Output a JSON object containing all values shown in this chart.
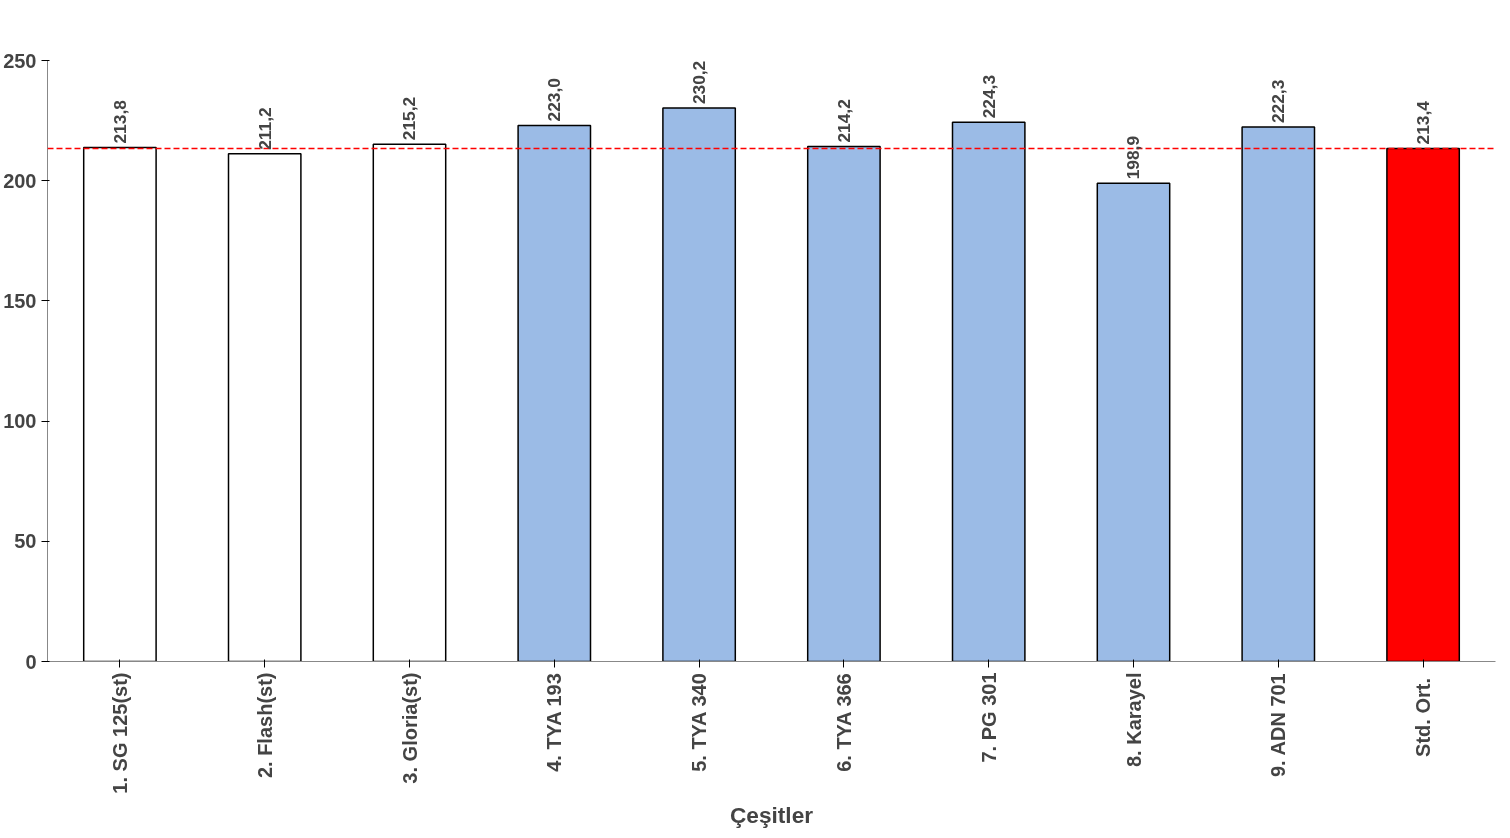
{
  "chart_data": {
    "type": "bar",
    "xlabel": "Çeşitler",
    "categories": [
      "1. SG 125(st)",
      "2. Flash(st)",
      "3. Gloria(st)",
      "4. TYA 193",
      "5. TYA 340",
      "6. TYA 366",
      "7. PG 301",
      "8. Karayel",
      "9. ADN 701",
      "Std.  Ort."
    ],
    "values": [
      213.8,
      211.2,
      215.2,
      223.0,
      230.2,
      214.2,
      224.3,
      198.9,
      222.3,
      213.4
    ],
    "value_labels": [
      "213,8",
      "211,2",
      "215,2",
      "223,0",
      "230,2",
      "214,2",
      "224,3",
      "198,9",
      "222,3",
      "213,4"
    ],
    "colors": [
      "#ffffff",
      "#ffffff",
      "#ffffff",
      "#9bbbe6",
      "#9bbbe6",
      "#9bbbe6",
      "#9bbbe6",
      "#9bbbe6",
      "#9bbbe6",
      "#ff0000"
    ],
    "ylim": [
      0,
      250
    ],
    "yticks": [
      0,
      50,
      100,
      150,
      200,
      250
    ],
    "ref_lines": [
      {
        "axis": "y",
        "value": 213.4,
        "color": "#ff0000",
        "line_style": "dashed"
      }
    ],
    "grid": false
  }
}
